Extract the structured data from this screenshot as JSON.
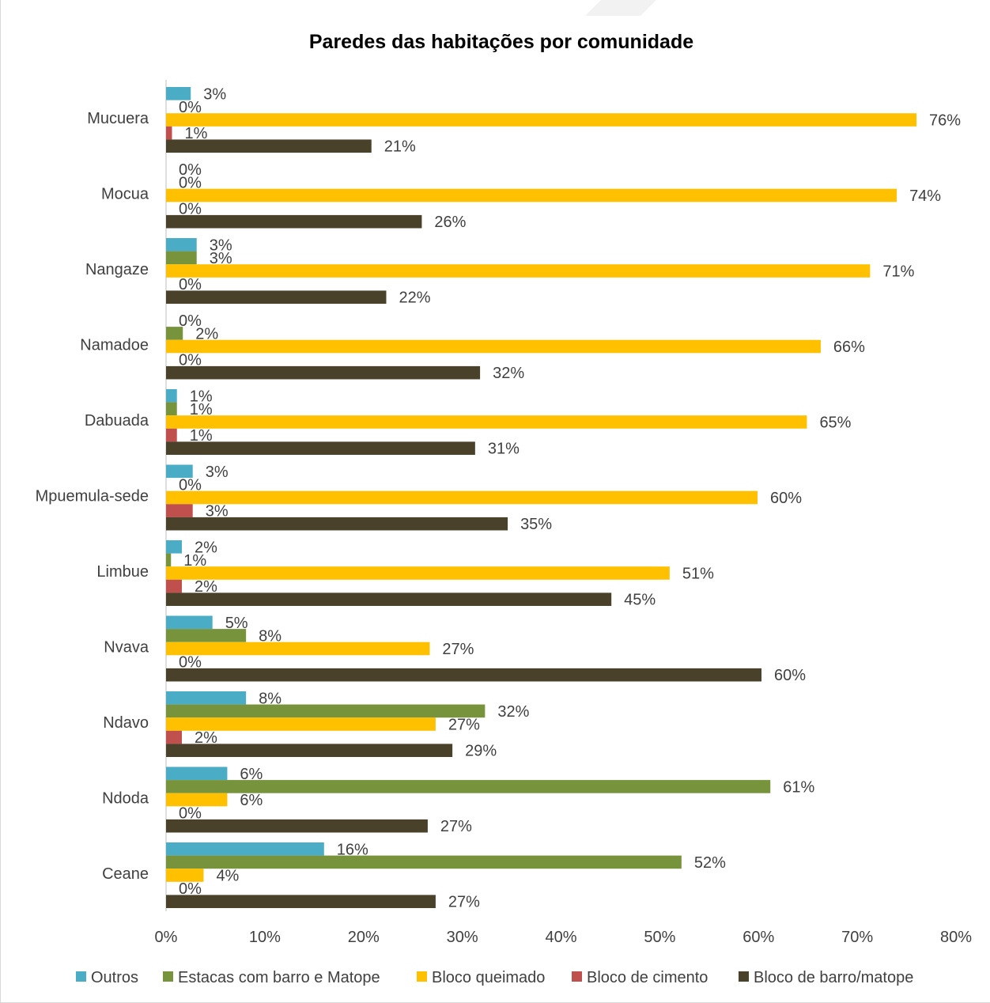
{
  "chart_data": {
    "type": "bar",
    "orientation": "horizontal",
    "title": "Paredes das habitações por comunidade",
    "categories": [
      "Mucuera",
      "Mocua",
      "Nangaze",
      "Namadoe",
      "Dabuada",
      "Mpuemula-sede",
      "Limbue",
      "Nvava",
      "Ndavo",
      "Ndoda",
      "Ceane"
    ],
    "series": [
      {
        "name": "Outros",
        "color": "#4bacc6",
        "values": [
          3,
          0,
          3,
          null,
          1,
          3,
          2,
          5,
          8,
          6,
          16
        ],
        "labels": [
          "3%",
          "0%",
          "3%",
          "0%",
          "1%",
          "3%",
          "2%",
          "5%",
          "8%",
          "6%",
          "16%"
        ],
        "bar_values": [
          2.5,
          0,
          3.1,
          0,
          1.1,
          2.7,
          1.6,
          4.7,
          8.1,
          6.2,
          16.0
        ]
      },
      {
        "name": "Estacas com barro e Matope",
        "color": "#77933c",
        "values": [
          0,
          0,
          3,
          2,
          1,
          0,
          1,
          8,
          32,
          61,
          52
        ],
        "labels": [
          "0%",
          "0%",
          "3%",
          "2%",
          "1%",
          "0%",
          "1%",
          "8%",
          "32%",
          "61%",
          "52%"
        ],
        "bar_values": [
          0,
          0,
          3.1,
          1.7,
          1.1,
          0,
          0.5,
          8.1,
          32.3,
          61.2,
          52.2
        ]
      },
      {
        "name": "Bloco queimado",
        "color": "#ffc000",
        "values": [
          76,
          74,
          71,
          66,
          65,
          60,
          51,
          27,
          27,
          6,
          4
        ],
        "labels": [
          "76%",
          "74%",
          "71%",
          "66%",
          "65%",
          "60%",
          "51%",
          "27%",
          "27%",
          "6%",
          "4%"
        ],
        "bar_values": [
          76.0,
          74.0,
          71.3,
          66.3,
          64.9,
          59.9,
          51.0,
          26.7,
          27.3,
          6.2,
          3.8
        ]
      },
      {
        "name": "Bloco de cimento",
        "color": "#c0504d",
        "values": [
          1,
          0,
          0,
          0,
          1,
          3,
          2,
          0,
          2,
          0,
          0
        ],
        "labels": [
          "1%",
          "0%",
          "0%",
          "0%",
          "1%",
          "3%",
          "2%",
          "0%",
          "2%",
          "0%",
          "0%"
        ],
        "bar_values": [
          0.6,
          0,
          0,
          0,
          1.1,
          2.7,
          1.6,
          0,
          1.6,
          0,
          0
        ]
      },
      {
        "name": "Bloco de barro/matope",
        "color": "#4a412a",
        "values": [
          21,
          26,
          22,
          32,
          31,
          35,
          45,
          60,
          29,
          27,
          27
        ],
        "labels": [
          "21%",
          "26%",
          "22%",
          "32%",
          "31%",
          "35%",
          "45%",
          "60%",
          "29%",
          "27%",
          "27%"
        ],
        "bar_values": [
          20.8,
          25.9,
          22.3,
          31.8,
          31.3,
          34.6,
          45.1,
          60.3,
          29.0,
          26.5,
          27.3
        ]
      }
    ],
    "x_ticks": [
      "0%",
      "10%",
      "20%",
      "30%",
      "40%",
      "50%",
      "60%",
      "70%",
      "80%"
    ],
    "xlim": [
      0,
      80
    ],
    "grid": false,
    "legend": {
      "placement": "bottom"
    }
  }
}
